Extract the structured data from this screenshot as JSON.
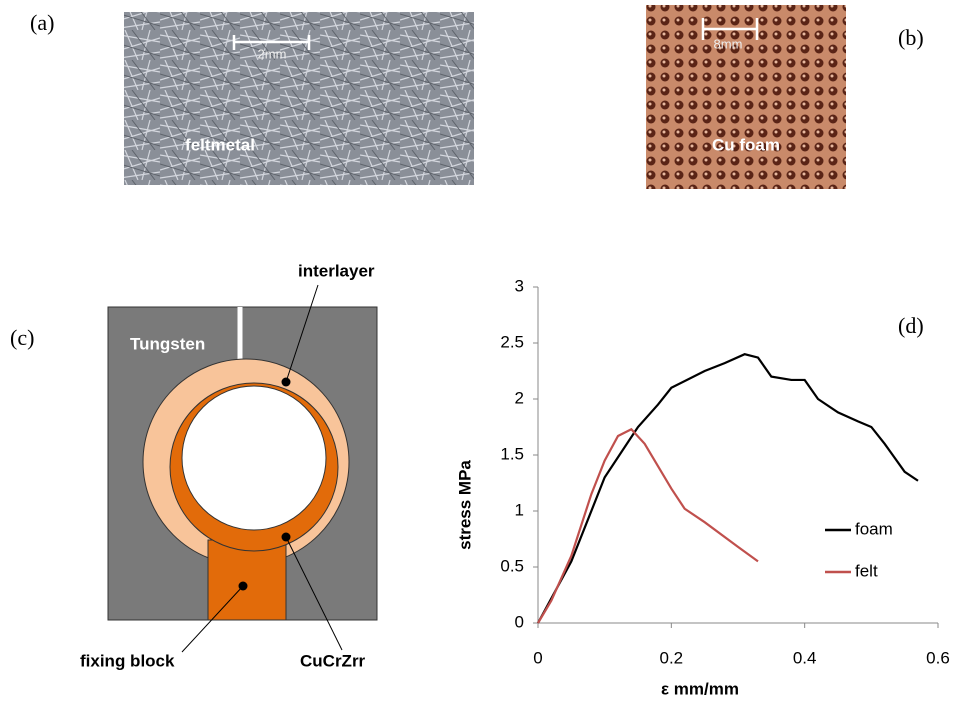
{
  "panels": {
    "a": {
      "label": "(a)",
      "scale": "2mm",
      "caption": "feltmetal"
    },
    "b": {
      "label": "(b)",
      "scale": "8mm",
      "caption": "Cu foam"
    },
    "c": {
      "label": "(c)"
    },
    "d": {
      "label": "(d)"
    }
  },
  "diagram": {
    "tungsten": "Tungsten",
    "interlayer": "interlayer",
    "fixing_block": "fixing block",
    "cucrzr": "CuCrZrr"
  },
  "chart_data": {
    "type": "line",
    "x_label": "ε mm/mm",
    "y_label": "stress MPa",
    "xlim": [
      0,
      0.6
    ],
    "ylim": [
      0,
      3
    ],
    "xticks": [
      0,
      0.2,
      0.4,
      0.6
    ],
    "yticks": [
      0,
      0.5,
      1,
      1.5,
      2,
      2.5,
      3
    ],
    "legend": "right",
    "series": [
      {
        "name": "foam",
        "color": "#000000",
        "x": [
          0,
          0.05,
          0.1,
          0.15,
          0.18,
          0.2,
          0.25,
          0.28,
          0.31,
          0.33,
          0.35,
          0.38,
          0.4,
          0.42,
          0.45,
          0.48,
          0.5,
          0.52,
          0.55,
          0.57
        ],
        "values": [
          0,
          0.55,
          1.3,
          1.75,
          1.95,
          2.1,
          2.25,
          2.32,
          2.4,
          2.37,
          2.2,
          2.17,
          2.17,
          2.0,
          1.88,
          1.8,
          1.75,
          1.6,
          1.35,
          1.27
        ]
      },
      {
        "name": "felt",
        "color": "#c0504d",
        "x": [
          0,
          0.02,
          0.05,
          0.08,
          0.1,
          0.12,
          0.14,
          0.16,
          0.2,
          0.22,
          0.25,
          0.3,
          0.33
        ],
        "values": [
          0,
          0.2,
          0.6,
          1.15,
          1.45,
          1.67,
          1.73,
          1.6,
          1.2,
          1.02,
          0.9,
          0.68,
          0.55
        ]
      }
    ]
  }
}
